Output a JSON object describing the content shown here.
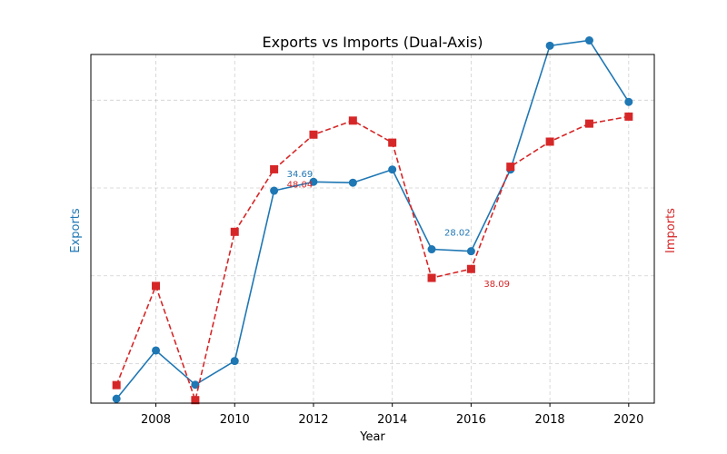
{
  "chart_data": {
    "type": "line",
    "title": "Exports vs Imports (Dual-Axis)",
    "xlabel": "Year",
    "ylabel_left": "Exports",
    "ylabel_right": "Imports",
    "x": [
      2007,
      2008,
      2009,
      2010,
      2011,
      2012,
      2013,
      2014,
      2015,
      2016,
      2017,
      2018,
      2019,
      2020
    ],
    "xticks": [
      2008,
      2010,
      2012,
      2014,
      2016,
      2018,
      2020
    ],
    "xlim": [
      2006.35,
      2020.65
    ],
    "grid": true,
    "series": [
      {
        "name": "Exports",
        "axis": "left",
        "color": "#1f77b4",
        "marker": "circle",
        "linestyle": "solid",
        "ylim": [
          10.5,
          50.2
        ],
        "values": [
          11.0,
          16.5,
          12.6,
          15.3,
          34.69,
          35.7,
          35.6,
          37.1,
          28.02,
          27.8,
          37.1,
          51.2,
          51.8,
          44.8
        ],
        "labels": [
          {
            "index": 4,
            "text": "34.69"
          },
          {
            "index": 8,
            "text": "28.02"
          }
        ]
      },
      {
        "name": "Imports",
        "axis": "right",
        "color": "#d62728",
        "marker": "square",
        "linestyle": "dashed",
        "ylim": [
          24.7,
          59.5
        ],
        "values": [
          26.5,
          36.4,
          25.0,
          41.8,
          48.04,
          51.5,
          52.9,
          50.7,
          37.2,
          38.09,
          48.3,
          50.8,
          52.6,
          53.3
        ],
        "labels": [
          {
            "index": 4,
            "text": "48.04"
          },
          {
            "index": 9,
            "text": "38.09"
          }
        ]
      }
    ]
  }
}
